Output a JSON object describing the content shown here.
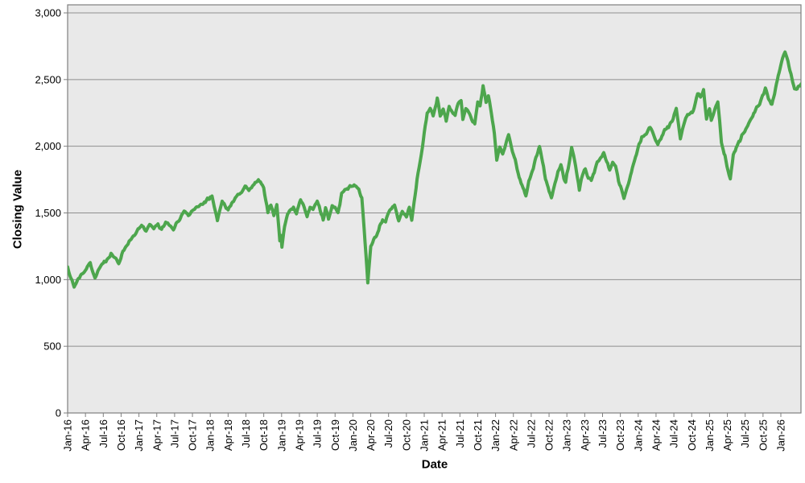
{
  "chart_data": {
    "type": "line",
    "title": "",
    "xlabel": "Date",
    "ylabel": "Closing Value",
    "legend": "none",
    "grid": "horizontal-only",
    "plot_background": "#E9E9E9",
    "grid_color": "#8E8E8E",
    "border_color": "#7F7F7F",
    "ylim": [
      0,
      3060
    ],
    "y_ticks": [
      0,
      500,
      1000,
      1500,
      2000,
      2500,
      3000
    ],
    "y_tick_labels": [
      "0",
      "500",
      "1,000",
      "1,500",
      "2,000",
      "2,500",
      "3,000"
    ],
    "x_tick_labels": [
      "Jan-16",
      "Apr-16",
      "Jul-16",
      "Oct-16",
      "Jan-17",
      "Apr-17",
      "Jul-17",
      "Oct-17",
      "Jan-18",
      "Apr-18",
      "Jul-18",
      "Oct-18",
      "Jan-19",
      "Apr-19",
      "Jul-19",
      "Oct-19",
      "Jan-20",
      "Apr-20",
      "Jul-20",
      "Oct-20",
      "Jan-21",
      "Apr-21",
      "Jul-21",
      "Oct-21",
      "Jan-22",
      "Apr-22",
      "Jul-22",
      "Oct-22",
      "Jan-23",
      "Apr-23",
      "Jul-23",
      "Oct-23",
      "Jan-24",
      "Apr-24",
      "Jul-24",
      "Oct-24",
      "Jan-25",
      "Apr-25",
      "Jul-25",
      "Oct-25",
      "Jan-26"
    ],
    "x_tick_interval_months": 3,
    "x_range_months": [
      0,
      123.4
    ],
    "series": [
      {
        "name": "Closing Value",
        "color": "#4DA64D",
        "points_format": [
          "months_since_Jan_2016",
          "closing_value"
        ],
        "points": [
          [
            0,
            1095
          ],
          [
            0.4,
            1030
          ],
          [
            1.1,
            945
          ],
          [
            1.7,
            1000
          ],
          [
            2.3,
            1040
          ],
          [
            3,
            1070
          ],
          [
            3.8,
            1130
          ],
          [
            4.6,
            1010
          ],
          [
            5.3,
            1080
          ],
          [
            6,
            1120
          ],
          [
            6.6,
            1150
          ],
          [
            7.3,
            1195
          ],
          [
            8,
            1160
          ],
          [
            8.6,
            1120
          ],
          [
            9.3,
            1215
          ],
          [
            10,
            1260
          ],
          [
            10.7,
            1300
          ],
          [
            11.4,
            1340
          ],
          [
            12,
            1380
          ],
          [
            12.6,
            1400
          ],
          [
            13.2,
            1365
          ],
          [
            13.8,
            1410
          ],
          [
            14.5,
            1380
          ],
          [
            15.2,
            1420
          ],
          [
            15.8,
            1375
          ],
          [
            16.5,
            1430
          ],
          [
            17.2,
            1400
          ],
          [
            17.8,
            1370
          ],
          [
            18.4,
            1430
          ],
          [
            19,
            1460
          ],
          [
            19.6,
            1510
          ],
          [
            20.3,
            1480
          ],
          [
            21,
            1515
          ],
          [
            21.7,
            1545
          ],
          [
            22.4,
            1565
          ],
          [
            23,
            1585
          ],
          [
            23.7,
            1605
          ],
          [
            24,
            1620
          ],
          [
            24.3,
            1625
          ],
          [
            25.2,
            1440
          ],
          [
            26,
            1590
          ],
          [
            26.5,
            1555
          ],
          [
            27,
            1520
          ],
          [
            27.6,
            1570
          ],
          [
            28.2,
            1610
          ],
          [
            28.8,
            1640
          ],
          [
            29.4,
            1660
          ],
          [
            30,
            1700
          ],
          [
            30.5,
            1665
          ],
          [
            31.1,
            1700
          ],
          [
            31.7,
            1730
          ],
          [
            32.1,
            1752
          ],
          [
            32.6,
            1715
          ],
          [
            33,
            1690
          ],
          [
            33.7,
            1500
          ],
          [
            34.2,
            1560
          ],
          [
            34.7,
            1480
          ],
          [
            35.2,
            1560
          ],
          [
            35.7,
            1290
          ],
          [
            35.9,
            1330
          ],
          [
            36.05,
            1245
          ],
          [
            36.5,
            1400
          ],
          [
            37,
            1490
          ],
          [
            37.5,
            1520
          ],
          [
            38,
            1545
          ],
          [
            38.5,
            1490
          ],
          [
            39.2,
            1600
          ],
          [
            39.8,
            1540
          ],
          [
            40.3,
            1468
          ],
          [
            40.8,
            1545
          ],
          [
            41.3,
            1530
          ],
          [
            42,
            1590
          ],
          [
            42.5,
            1520
          ],
          [
            43,
            1450
          ],
          [
            43.4,
            1540
          ],
          [
            43.9,
            1455
          ],
          [
            44.5,
            1555
          ],
          [
            45,
            1540
          ],
          [
            45.5,
            1500
          ],
          [
            46.1,
            1645
          ],
          [
            47,
            1685
          ],
          [
            48.2,
            1710
          ],
          [
            49,
            1680
          ],
          [
            49.5,
            1610
          ],
          [
            49.9,
            1380
          ],
          [
            50.5,
            975
          ],
          [
            51,
            1250
          ],
          [
            51.5,
            1300
          ],
          [
            52,
            1330
          ],
          [
            52.5,
            1400
          ],
          [
            53,
            1450
          ],
          [
            53.5,
            1430
          ],
          [
            54,
            1500
          ],
          [
            54.5,
            1530
          ],
          [
            55,
            1560
          ],
          [
            55.7,
            1440
          ],
          [
            56.3,
            1510
          ],
          [
            57,
            1470
          ],
          [
            57.5,
            1545
          ],
          [
            57.9,
            1445
          ],
          [
            58.3,
            1580
          ],
          [
            58.8,
            1750
          ],
          [
            59.3,
            1880
          ],
          [
            59.7,
            1990
          ],
          [
            60,
            2100
          ],
          [
            60.5,
            2250
          ],
          [
            61,
            2280
          ],
          [
            61.5,
            2230
          ],
          [
            62.2,
            2360
          ],
          [
            62.7,
            2230
          ],
          [
            63.2,
            2280
          ],
          [
            63.7,
            2190
          ],
          [
            64.2,
            2300
          ],
          [
            64.7,
            2260
          ],
          [
            65.2,
            2230
          ],
          [
            65.7,
            2320
          ],
          [
            66.2,
            2340
          ],
          [
            66.5,
            2200
          ],
          [
            67,
            2280
          ],
          [
            67.5,
            2250
          ],
          [
            68,
            2200
          ],
          [
            68.5,
            2170
          ],
          [
            69,
            2330
          ],
          [
            69.4,
            2300
          ],
          [
            69.9,
            2455
          ],
          [
            70.4,
            2330
          ],
          [
            70.8,
            2380
          ],
          [
            71.3,
            2250
          ],
          [
            71.8,
            2100
          ],
          [
            72.2,
            1900
          ],
          [
            72.7,
            1990
          ],
          [
            73.2,
            1940
          ],
          [
            74.2,
            2085
          ],
          [
            74.7,
            1990
          ],
          [
            75.3,
            1900
          ],
          [
            75.8,
            1800
          ],
          [
            76.3,
            1720
          ],
          [
            77.1,
            1630
          ],
          [
            77.6,
            1740
          ],
          [
            78.2,
            1820
          ],
          [
            78.8,
            1920
          ],
          [
            79.4,
            1995
          ],
          [
            79.9,
            1880
          ],
          [
            80.4,
            1750
          ],
          [
            81,
            1660
          ],
          [
            81.4,
            1615
          ],
          [
            82,
            1720
          ],
          [
            82.5,
            1810
          ],
          [
            83,
            1860
          ],
          [
            83.5,
            1760
          ],
          [
            83.8,
            1730
          ],
          [
            84,
            1800
          ],
          [
            84.4,
            1880
          ],
          [
            84.8,
            1990
          ],
          [
            85.3,
            1890
          ],
          [
            86.1,
            1670
          ],
          [
            86.6,
            1780
          ],
          [
            87.1,
            1830
          ],
          [
            87.6,
            1760
          ],
          [
            88.1,
            1745
          ],
          [
            88.6,
            1800
          ],
          [
            89.1,
            1880
          ],
          [
            89.6,
            1905
          ],
          [
            90.2,
            1950
          ],
          [
            90.7,
            1880
          ],
          [
            91.2,
            1820
          ],
          [
            91.7,
            1880
          ],
          [
            92.2,
            1850
          ],
          [
            92.7,
            1740
          ],
          [
            93.2,
            1680
          ],
          [
            93.6,
            1610
          ],
          [
            94.2,
            1700
          ],
          [
            94.7,
            1780
          ],
          [
            95.2,
            1870
          ],
          [
            95.7,
            1940
          ],
          [
            96,
            1990
          ],
          [
            96.6,
            2070
          ],
          [
            97.2,
            2090
          ],
          [
            98,
            2140
          ],
          [
            98.4,
            2110
          ],
          [
            99.3,
            2012
          ],
          [
            100,
            2080
          ],
          [
            100.6,
            2130
          ],
          [
            101.1,
            2140
          ],
          [
            101.7,
            2190
          ],
          [
            102.4,
            2285
          ],
          [
            103.1,
            2055
          ],
          [
            103.6,
            2150
          ],
          [
            104,
            2215
          ],
          [
            104.6,
            2240
          ],
          [
            105.1,
            2255
          ],
          [
            105.6,
            2320
          ],
          [
            106,
            2390
          ],
          [
            106.5,
            2370
          ],
          [
            107,
            2425
          ],
          [
            107.5,
            2205
          ],
          [
            107.8,
            2260
          ],
          [
            108,
            2280
          ],
          [
            108.3,
            2190
          ],
          [
            108.8,
            2260
          ],
          [
            109.4,
            2330
          ],
          [
            110,
            2030
          ],
          [
            110.6,
            1930
          ],
          [
            111.1,
            1820
          ],
          [
            111.5,
            1752
          ],
          [
            112,
            1933
          ],
          [
            112.5,
            1990
          ],
          [
            113.1,
            2040
          ],
          [
            113.6,
            2090
          ],
          [
            114.1,
            2130
          ],
          [
            114.6,
            2175
          ],
          [
            115.1,
            2215
          ],
          [
            115.6,
            2255
          ],
          [
            116.1,
            2300
          ],
          [
            116.6,
            2340
          ],
          [
            117.1,
            2390
          ],
          [
            117.4,
            2435
          ],
          [
            117.9,
            2360
          ],
          [
            118.5,
            2315
          ],
          [
            119.1,
            2430
          ],
          [
            119.7,
            2550
          ],
          [
            120.3,
            2660
          ],
          [
            120.7,
            2710
          ],
          [
            121.2,
            2640
          ],
          [
            121.7,
            2540
          ],
          [
            122.3,
            2430
          ],
          [
            122.9,
            2445
          ],
          [
            123.4,
            2465
          ]
        ]
      }
    ]
  }
}
